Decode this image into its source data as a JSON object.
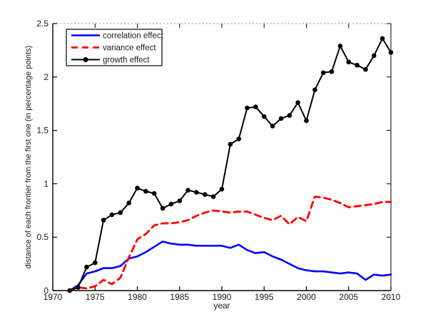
{
  "figure": {
    "background": "#ffffff",
    "axis_color": "#000000",
    "top_border_color": "#909090"
  },
  "chart_data": {
    "type": "line",
    "title": "",
    "xlabel": "year",
    "ylabel": "distance of each frontier from the first one (in percentage points)",
    "xlim": [
      1970,
      2010
    ],
    "ylim": [
      0,
      2.5
    ],
    "grid": false,
    "x_ticks": [
      1970,
      1975,
      1980,
      1985,
      1990,
      1995,
      2000,
      2005,
      2010
    ],
    "x_tick_labels": [
      "1970",
      "1975",
      "1980",
      "1985",
      "1990",
      "1995",
      "2000",
      "2005",
      "2010"
    ],
    "y_ticks": [
      0,
      0.5,
      1,
      1.5,
      2,
      2.5
    ],
    "y_tick_labels": [
      "0",
      "0.5",
      "1",
      "1.5",
      "2",
      "2.5"
    ],
    "legend": {
      "position": "top-left",
      "border": true,
      "entries": [
        "correlation effect",
        "variance effect",
        "growth effect"
      ]
    },
    "x": [
      1972,
      1973,
      1974,
      1975,
      1976,
      1977,
      1978,
      1979,
      1980,
      1981,
      1982,
      1983,
      1984,
      1985,
      1986,
      1987,
      1988,
      1989,
      1990,
      1991,
      1992,
      1993,
      1994,
      1995,
      1996,
      1997,
      1998,
      1999,
      2000,
      2001,
      2002,
      2003,
      2004,
      2005,
      2006,
      2007,
      2008,
      2009,
      2010
    ],
    "series": [
      {
        "name": "correlation effect",
        "color": "#0000ff",
        "style": "solid",
        "marker": "none",
        "values": [
          0.0,
          0.05,
          0.16,
          0.18,
          0.21,
          0.21,
          0.23,
          0.3,
          0.32,
          0.36,
          0.41,
          0.46,
          0.44,
          0.43,
          0.43,
          0.42,
          0.42,
          0.42,
          0.42,
          0.4,
          0.43,
          0.38,
          0.35,
          0.36,
          0.32,
          0.29,
          0.25,
          0.21,
          0.19,
          0.18,
          0.18,
          0.17,
          0.16,
          0.17,
          0.16,
          0.1,
          0.15,
          0.14,
          0.15
        ]
      },
      {
        "name": "variance effect",
        "color": "#ff0000",
        "style": "dashed",
        "marker": "none",
        "values": [
          0.0,
          0.03,
          0.02,
          0.04,
          0.1,
          0.06,
          0.12,
          0.31,
          0.48,
          0.53,
          0.61,
          0.63,
          0.63,
          0.64,
          0.66,
          0.7,
          0.73,
          0.75,
          0.74,
          0.73,
          0.74,
          0.74,
          0.71,
          0.68,
          0.66,
          0.7,
          0.62,
          0.69,
          0.65,
          0.88,
          0.87,
          0.85,
          0.82,
          0.78,
          0.79,
          0.8,
          0.81,
          0.83,
          0.83
        ]
      },
      {
        "name": "growth effect",
        "color": "#000000",
        "style": "solid",
        "marker": "circle",
        "values": [
          0.0,
          0.03,
          0.22,
          0.26,
          0.66,
          0.71,
          0.73,
          0.82,
          0.96,
          0.93,
          0.91,
          0.77,
          0.81,
          0.84,
          0.94,
          0.92,
          0.9,
          0.88,
          0.95,
          1.37,
          1.42,
          1.71,
          1.72,
          1.63,
          1.54,
          1.61,
          1.64,
          1.76,
          1.59,
          1.88,
          2.04,
          2.05,
          2.29,
          2.14,
          2.11,
          2.07,
          2.2,
          2.36,
          2.23
        ]
      }
    ]
  }
}
